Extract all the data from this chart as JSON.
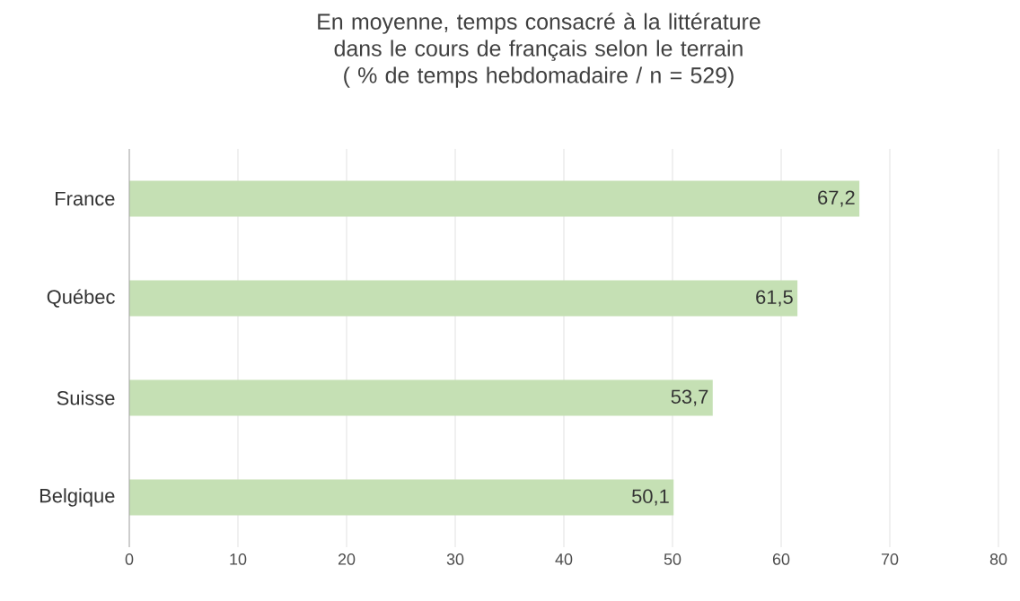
{
  "chart_data": {
    "type": "bar",
    "orientation": "horizontal",
    "title": "En moyenne, temps consacré à la littérature dans le cours de français selon le terrain",
    "subtitle": "( % de temps hebdomadaire / n = 529)",
    "categories": [
      "France",
      "Québec",
      "Suisse",
      "Belgique"
    ],
    "values": [
      67.2,
      61.5,
      53.7,
      50.1
    ],
    "value_labels": [
      "67,2",
      "61,5",
      "53,7",
      "50,1"
    ],
    "color": "#c5e0b4",
    "xlim": [
      0,
      80
    ],
    "xticks": [
      0,
      10,
      20,
      30,
      40,
      50,
      60,
      70,
      80
    ],
    "grid": "x"
  }
}
